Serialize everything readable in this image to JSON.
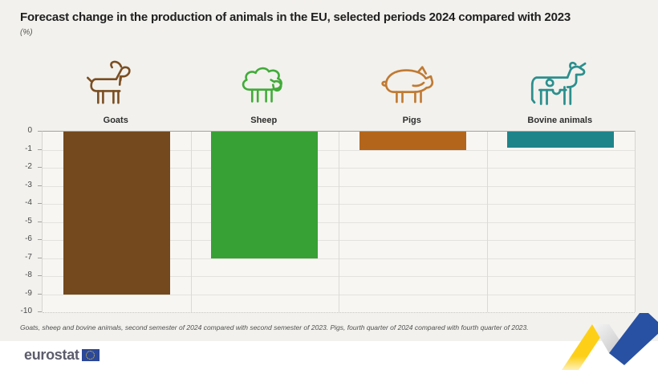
{
  "header": {
    "title": "Forecast change in the production of animals in the EU, selected periods 2024 compared with 2023",
    "subtitle": "(%)"
  },
  "chart_data": {
    "type": "bar",
    "title": "Forecast change in the production of animals in the EU, selected periods 2024 compared with 2023",
    "unit": "%",
    "categories": [
      "Goats",
      "Sheep",
      "Pigs",
      "Bovine animals"
    ],
    "values": [
      -9,
      -7,
      -1,
      -0.9
    ],
    "bar_colors": [
      "#74491d",
      "#38a135",
      "#b3661b",
      "#1f848a"
    ],
    "icon_colors": [
      "#7a4e22",
      "#41ab39",
      "#c07a33",
      "#2b8f8d"
    ],
    "icons": [
      "goat-icon",
      "sheep-icon",
      "pig-icon",
      "cow-icon"
    ],
    "ylabel": "",
    "xlabel": "",
    "ylim": [
      -10,
      0
    ],
    "yticks": [
      0,
      -1,
      -2,
      -3,
      -4,
      -5,
      -6,
      -7,
      -8,
      -9,
      -10
    ],
    "grid": true,
    "legend": false
  },
  "footnote": "Goats, sheep and bovine animals, second semester of 2024 compared with second semester of 2023. Pigs, fourth quarter of 2024 compared with fourth quarter of 2023.",
  "footer": {
    "logo_text": "eurostat"
  }
}
